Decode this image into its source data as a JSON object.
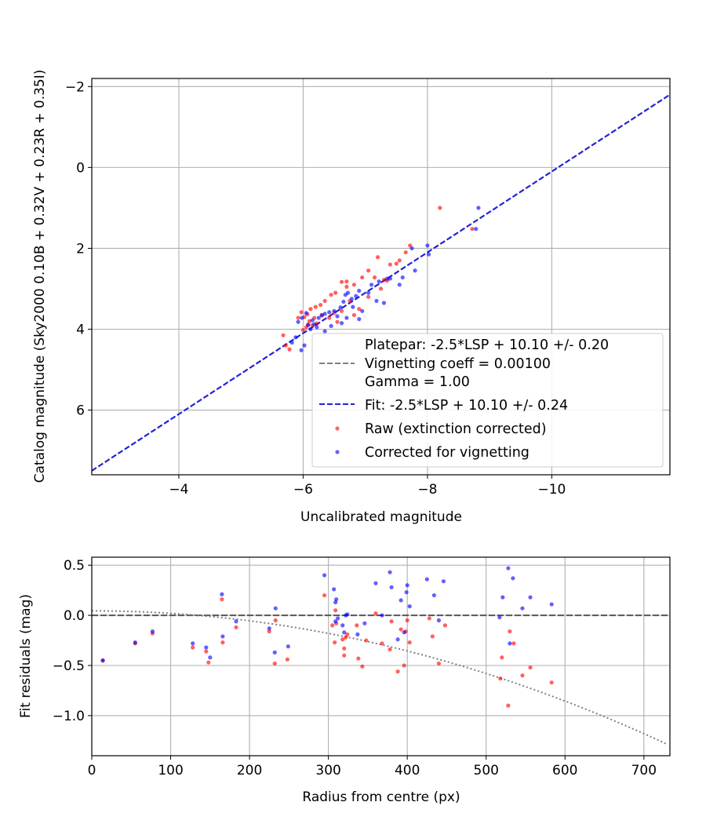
{
  "chart_data": [
    {
      "type": "scatter",
      "xlabel": "Uncalibrated magnitude",
      "ylabel": "Catalog magnitude (Sky2000 0.10B + 0.32V + 0.23R + 0.35I)",
      "xlim": [
        -2.6,
        -11.9
      ],
      "ylim": [
        7.6,
        -2.2
      ],
      "x_inverted": true,
      "y_inverted": true,
      "grid": true,
      "xticks": [
        -4,
        -6,
        -8,
        -10
      ],
      "xtick_labels": [
        "−4",
        "−6",
        "−8",
        "−10"
      ],
      "yticks": [
        -2,
        0,
        2,
        4,
        6
      ],
      "ytick_labels": [
        "−2",
        "0",
        "2",
        "4",
        "6"
      ],
      "legend_position": "lower-right",
      "legend": [
        {
          "label": "Platepar: -2.5*LSP + 10.10 +/- 0.20\nVignetting coeff = 0.00100\nGamma = 1.00",
          "style": "dashed",
          "color": "#808080"
        },
        {
          "label": "Fit: -2.5*LSP + 10.10 +/- 0.24",
          "style": "dashed",
          "color": "#2222dd"
        },
        {
          "label": "Raw (extinction corrected)",
          "style": "marker",
          "color": "#ff0000"
        },
        {
          "label": "Corrected for vignetting",
          "style": "marker",
          "color": "#0000ff"
        }
      ],
      "lines": [
        {
          "name": "Platepar",
          "slope": 1,
          "intercept": 10.1,
          "color": "#808080",
          "style": "dashed"
        },
        {
          "name": "Fit",
          "slope": 1,
          "intercept": 10.1,
          "color": "#2222dd",
          "style": "dashed"
        }
      ],
      "series": [
        {
          "name": "Raw (extinction corrected)",
          "color": "#ff0000",
          "points": [
            [
              -8.2,
              1.0
            ],
            [
              -8.72,
              1.52
            ],
            [
              -7.72,
              1.93
            ],
            [
              -7.65,
              2.1
            ],
            [
              -7.55,
              2.3
            ],
            [
              -7.5,
              2.38
            ],
            [
              -7.4,
              2.4
            ],
            [
              -7.2,
              2.22
            ],
            [
              -7.05,
              2.55
            ],
            [
              -7.15,
              2.72
            ],
            [
              -6.95,
              2.72
            ],
            [
              -7.3,
              2.78
            ],
            [
              -6.7,
              2.82
            ],
            [
              -6.62,
              2.83
            ],
            [
              -6.82,
              2.9
            ],
            [
              -6.7,
              2.95
            ],
            [
              -6.52,
              3.1
            ],
            [
              -6.45,
              3.15
            ],
            [
              -6.35,
              3.3
            ],
            [
              -6.28,
              3.4
            ],
            [
              -6.2,
              3.45
            ],
            [
              -6.12,
              3.5
            ],
            [
              -6.07,
              3.63
            ],
            [
              -5.97,
              3.58
            ],
            [
              -5.92,
              3.72
            ],
            [
              -6.02,
              3.7
            ],
            [
              -6.1,
              3.8
            ],
            [
              -6.15,
              3.9
            ],
            [
              -6.05,
              3.95
            ],
            [
              -6.22,
              3.86
            ],
            [
              -6.0,
              4.02
            ],
            [
              -5.68,
              4.15
            ],
            [
              -5.72,
              4.4
            ],
            [
              -5.78,
              4.5
            ],
            [
              -6.3,
              3.66
            ],
            [
              -6.42,
              3.72
            ],
            [
              -6.5,
              3.6
            ],
            [
              -6.62,
              3.55
            ],
            [
              -6.55,
              3.82
            ],
            [
              -6.82,
              3.65
            ],
            [
              -6.9,
              3.5
            ],
            [
              -7.05,
              3.2
            ],
            [
              -7.25,
              3.0
            ],
            [
              -7.35,
              2.8
            ],
            [
              -6.75,
              3.3
            ],
            [
              -6.18,
              3.72
            ],
            [
              -6.08,
              3.88
            ]
          ]
        },
        {
          "name": "Corrected for vignetting",
          "color": "#0000ff",
          "points": [
            [
              -8.82,
              1.0
            ],
            [
              -8.78,
              1.52
            ],
            [
              -8.0,
              1.93
            ],
            [
              -8.02,
              2.15
            ],
            [
              -7.75,
              2.0
            ],
            [
              -7.8,
              2.55
            ],
            [
              -7.6,
              2.72
            ],
            [
              -7.55,
              2.9
            ],
            [
              -7.4,
              2.75
            ],
            [
              -7.22,
              2.82
            ],
            [
              -7.1,
              2.9
            ],
            [
              -7.05,
              3.1
            ],
            [
              -6.9,
              3.05
            ],
            [
              -6.85,
              3.18
            ],
            [
              -6.78,
              3.25
            ],
            [
              -6.72,
              3.1
            ],
            [
              -6.8,
              3.45
            ],
            [
              -6.65,
              3.32
            ],
            [
              -6.6,
              3.46
            ],
            [
              -6.5,
              3.55
            ],
            [
              -6.42,
              3.58
            ],
            [
              -6.35,
              3.62
            ],
            [
              -6.3,
              3.65
            ],
            [
              -6.25,
              3.72
            ],
            [
              -6.15,
              3.78
            ],
            [
              -6.05,
              3.6
            ],
            [
              -5.98,
              3.72
            ],
            [
              -5.92,
              3.82
            ],
            [
              -6.08,
              3.9
            ],
            [
              -6.12,
              4.0
            ],
            [
              -6.18,
              3.88
            ],
            [
              -5.88,
              4.2
            ],
            [
              -5.82,
              4.33
            ],
            [
              -5.97,
              4.52
            ],
            [
              -6.02,
              4.4
            ],
            [
              -6.45,
              3.92
            ],
            [
              -6.62,
              3.85
            ],
            [
              -6.9,
              3.75
            ],
            [
              -7.3,
              3.35
            ],
            [
              -6.95,
              3.55
            ],
            [
              -6.7,
              3.72
            ],
            [
              -6.55,
              3.68
            ],
            [
              -7.35,
              2.75
            ],
            [
              -6.22,
              3.95
            ],
            [
              -6.35,
              4.05
            ],
            [
              -7.18,
              3.3
            ],
            [
              -6.68,
              3.15
            ]
          ]
        }
      ]
    },
    {
      "type": "scatter",
      "xlabel": "Radius from centre (px)",
      "ylabel": "Fit residuals (mag)",
      "xlim": [
        0,
        733
      ],
      "ylim": [
        -1.4,
        0.58
      ],
      "grid": true,
      "xticks": [
        0,
        100,
        200,
        300,
        400,
        500,
        600,
        700
      ],
      "xtick_labels": [
        "0",
        "100",
        "200",
        "300",
        "400",
        "500",
        "600",
        "700"
      ],
      "yticks": [
        0.5,
        0.0,
        -0.5,
        -1.0
      ],
      "ytick_labels": [
        "0.5",
        "0.0",
        "−0.5",
        "−1.0"
      ],
      "lines": [
        {
          "name": "Zero residual",
          "y": 0.0,
          "color": "#555555",
          "style": "dashed"
        },
        {
          "name": "Vignetting curve",
          "color": "#808080",
          "style": "dotted",
          "coeff": 0.001,
          "radius_scale": 0.0009
        }
      ],
      "series": [
        {
          "name": "Raw (extinction corrected)",
          "color": "#ff0000",
          "points": [
            [
              14,
              -0.45
            ],
            [
              55,
              -0.28
            ],
            [
              77,
              -0.18
            ],
            [
              128,
              -0.32
            ],
            [
              145,
              -0.36
            ],
            [
              148,
              -0.47
            ],
            [
              165,
              0.16
            ],
            [
              166,
              -0.27
            ],
            [
              183,
              -0.12
            ],
            [
              225,
              -0.16
            ],
            [
              232,
              -0.48
            ],
            [
              233,
              -0.05
            ],
            [
              248,
              -0.44
            ],
            [
              295,
              0.2
            ],
            [
              305,
              -0.1
            ],
            [
              308,
              -0.27
            ],
            [
              309,
              0.05
            ],
            [
              310,
              -0.08
            ],
            [
              318,
              -0.24
            ],
            [
              320,
              -0.33
            ],
            [
              320,
              -0.4
            ],
            [
              322,
              -0.22
            ],
            [
              324,
              -0.19
            ],
            [
              336,
              -0.1
            ],
            [
              338,
              -0.43
            ],
            [
              343,
              -0.51
            ],
            [
              348,
              -0.25
            ],
            [
              360,
              0.02
            ],
            [
              368,
              -0.28
            ],
            [
              378,
              -0.34
            ],
            [
              380,
              -0.06
            ],
            [
              388,
              -0.56
            ],
            [
              392,
              -0.14
            ],
            [
              396,
              -0.5
            ],
            [
              398,
              -0.16
            ],
            [
              400,
              -0.05
            ],
            [
              403,
              -0.27
            ],
            [
              428,
              -0.03
            ],
            [
              432,
              -0.21
            ],
            [
              440,
              -0.48
            ],
            [
              448,
              -0.1
            ],
            [
              520,
              -0.42
            ],
            [
              518,
              -0.63
            ],
            [
              528,
              -0.9
            ],
            [
              530,
              -0.16
            ],
            [
              535,
              -0.28
            ],
            [
              546,
              -0.6
            ],
            [
              556,
              -0.52
            ],
            [
              583,
              -0.67
            ]
          ]
        },
        {
          "name": "Corrected for vignetting",
          "color": "#0000ff",
          "points": [
            [
              14,
              -0.45
            ],
            [
              55,
              -0.27
            ],
            [
              77,
              -0.16
            ],
            [
              128,
              -0.28
            ],
            [
              145,
              -0.32
            ],
            [
              150,
              -0.42
            ],
            [
              165,
              0.21
            ],
            [
              166,
              -0.21
            ],
            [
              183,
              -0.06
            ],
            [
              225,
              -0.13
            ],
            [
              232,
              -0.37
            ],
            [
              233,
              0.07
            ],
            [
              249,
              -0.31
            ],
            [
              295,
              0.4
            ],
            [
              307,
              0.26
            ],
            [
              309,
              0.13
            ],
            [
              310,
              0.16
            ],
            [
              309,
              -0.06
            ],
            [
              312,
              -0.03
            ],
            [
              318,
              -0.1
            ],
            [
              320,
              -0.17
            ],
            [
              322,
              0.0
            ],
            [
              324,
              0.01
            ],
            [
              337,
              -0.19
            ],
            [
              346,
              -0.08
            ],
            [
              360,
              0.32
            ],
            [
              368,
              0.0
            ],
            [
              378,
              0.43
            ],
            [
              380,
              0.28
            ],
            [
              392,
              0.15
            ],
            [
              396,
              -0.17
            ],
            [
              400,
              0.3
            ],
            [
              399,
              0.23
            ],
            [
              403,
              0.09
            ],
            [
              425,
              0.36
            ],
            [
              434,
              0.2
            ],
            [
              440,
              -0.05
            ],
            [
              446,
              0.34
            ],
            [
              517,
              -0.02
            ],
            [
              521,
              0.18
            ],
            [
              528,
              0.47
            ],
            [
              530,
              -0.28
            ],
            [
              534,
              0.37
            ],
            [
              546,
              0.07
            ],
            [
              556,
              0.18
            ],
            [
              583,
              0.11
            ],
            [
              388,
              -0.24
            ]
          ]
        }
      ]
    }
  ]
}
